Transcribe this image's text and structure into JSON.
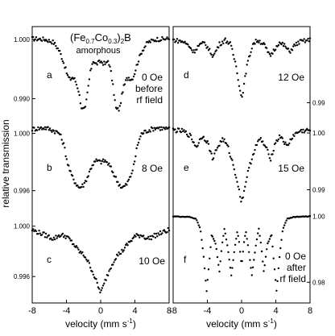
{
  "figure": {
    "ylabel": "relative transmission",
    "compound": {
      "base": "(Fe",
      "s1": "0.7",
      "mid": "Co",
      "s2": "0.3",
      "close": ")",
      "s3": "2",
      "end": "B"
    },
    "phase": "amorphous"
  },
  "chart_data": [
    {
      "type": "scatter",
      "id": "a",
      "label": "a",
      "annotation": [
        "0 Oe",
        "before",
        "rf field"
      ],
      "xlim": [
        -8,
        8
      ],
      "ylim": [
        0.9868,
        1.0012
      ],
      "yticks": [
        {
          "v": 1.0,
          "t": "1.000"
        },
        {
          "v": 0.99,
          "t": "0.990"
        }
      ],
      "xticks": [
        "-8",
        "-4",
        "0",
        "4",
        "8"
      ],
      "series": [
        {
          "x": [
            -8,
            -6.5,
            -5.5,
            -4.8,
            -4.3,
            -3.9,
            -3.6,
            -3.3,
            -3.0,
            -2.6,
            -2.2,
            -1.8,
            -1.5,
            -1.2,
            -0.9,
            -0.6,
            -0.3,
            0,
            0.3,
            0.6,
            0.9,
            1.2,
            1.5,
            1.8,
            2.2,
            2.6,
            3.0,
            3.3,
            3.6,
            3.9,
            4.3,
            4.8,
            5.5,
            6.5,
            8
          ],
          "y": [
            1.0001,
            1.0,
            0.9995,
            0.998,
            0.996,
            0.994,
            0.9932,
            0.9936,
            0.9932,
            0.9915,
            0.9882,
            0.9882,
            0.9915,
            0.9945,
            0.9965,
            0.9958,
            0.996,
            0.9963,
            0.996,
            0.9958,
            0.9965,
            0.9945,
            0.9915,
            0.9882,
            0.9882,
            0.9915,
            0.9932,
            0.9936,
            0.9932,
            0.994,
            0.996,
            0.998,
            0.9995,
            1.0,
            1.0001
          ]
        }
      ]
    },
    {
      "type": "scatter",
      "id": "b",
      "label": "b",
      "annotation": [
        "8 Oe"
      ],
      "xlim": [
        -8,
        8
      ],
      "ylim": [
        0.9948,
        1.0011
      ],
      "yticks": [
        {
          "v": 1.0,
          "t": "1.000"
        },
        {
          "v": 0.996,
          "t": "0.996"
        }
      ],
      "xticks": [
        "-8",
        "-4",
        "0",
        "4",
        "8"
      ],
      "series": [
        {
          "x": [
            -8,
            -6.5,
            -5.5,
            -4.8,
            -4.3,
            -3.9,
            -3.5,
            -3.0,
            -2.5,
            -2.0,
            -1.5,
            -1.0,
            -0.5,
            0,
            0.5,
            1.0,
            1.5,
            2.0,
            2.5,
            3.0,
            3.5,
            3.9,
            4.3,
            4.8,
            5.5,
            6.5,
            8
          ],
          "y": [
            1.0003,
            1.0004,
            1.0002,
            1.0,
            0.9992,
            0.998,
            0.9972,
            0.9966,
            0.9962,
            0.9964,
            0.997,
            0.9978,
            0.9981,
            0.998,
            0.9981,
            0.9978,
            0.9972,
            0.9966,
            0.9962,
            0.9964,
            0.997,
            0.9978,
            0.9992,
            1.0,
            1.0002,
            1.0004,
            1.0003
          ]
        }
      ]
    },
    {
      "type": "scatter",
      "id": "c",
      "label": "c",
      "annotation": [
        "10 Oe"
      ],
      "xlim": [
        -8,
        8
      ],
      "ylim": [
        0.9939,
        1.0012
      ],
      "yticks": [
        {
          "v": 1.0,
          "t": "1.000"
        },
        {
          "v": 0.996,
          "t": "0.996"
        }
      ],
      "xticks": [
        "-8",
        "-4",
        "0",
        "4",
        "8"
      ],
      "series": [
        {
          "x": [
            -8,
            -6.5,
            -5.5,
            -4.8,
            -4,
            -3.2,
            -2.5,
            -1.8,
            -1.2,
            -0.6,
            -0.2,
            0,
            0.2,
            0.6,
            1.2,
            1.8,
            2.5,
            3.2,
            4,
            4.8,
            5.5,
            6.5,
            8
          ],
          "y": [
            0.9997,
            0.9993,
            0.999,
            0.9993,
            0.9992,
            0.9986,
            0.998,
            0.9976,
            0.9968,
            0.9958,
            0.995,
            0.9948,
            0.995,
            0.9958,
            0.9968,
            0.9976,
            0.998,
            0.9986,
            0.9992,
            0.9993,
            0.999,
            0.9993,
            0.9997
          ]
        }
      ]
    },
    {
      "type": "scatter",
      "id": "d",
      "label": "d",
      "annotation": [
        "12 Oe"
      ],
      "xlim": [
        -8,
        8
      ],
      "ylim": [
        0.9875,
        1.0018
      ],
      "yticks": [
        {
          "v": 0.99,
          "t": "0.99"
        }
      ],
      "xticks": [
        "-8",
        "-4",
        "0",
        "4",
        "8"
      ],
      "series": [
        {
          "x": [
            -8,
            -6.8,
            -6.2,
            -5.6,
            -5.0,
            -4.3,
            -3.8,
            -3.3,
            -2.6,
            -1.9,
            -1.3,
            -0.6,
            -0.2,
            0,
            0.2,
            0.6,
            1.3,
            1.9,
            2.6,
            3.3,
            3.8,
            4.3,
            5.0,
            5.6,
            6.2,
            6.8,
            8
          ],
          "y": [
            1.0005,
            1.0002,
            0.9996,
            0.9985,
            0.9996,
            1.0,
            0.9988,
            0.9978,
            0.9998,
            1.0005,
            0.9998,
            0.996,
            0.9922,
            0.9908,
            0.9922,
            0.996,
            0.9998,
            1.0005,
            0.9998,
            0.9978,
            0.9988,
            1.0,
            0.9996,
            0.9985,
            0.9996,
            1.0002,
            1.0005
          ]
        }
      ]
    },
    {
      "type": "scatter",
      "id": "e",
      "label": "e",
      "annotation": [
        "15 Oe"
      ],
      "xlim": [
        -8,
        8
      ],
      "ylim": [
        0.9868,
        1.0027
      ],
      "yticks": [
        {
          "v": 1.0,
          "t": "1.00"
        },
        {
          "v": 0.99,
          "t": "0.99"
        }
      ],
      "xticks": [
        "-8",
        "-4",
        "0",
        "4",
        "8"
      ],
      "series": [
        {
          "x": [
            -8,
            -6.8,
            -6.0,
            -5.3,
            -4.6,
            -4.0,
            -3.4,
            -2.8,
            -2.2,
            -1.6,
            -1.0,
            -0.5,
            -0.2,
            0,
            0.2,
            0.5,
            1.0,
            1.6,
            2.2,
            2.8,
            3.4,
            4.0,
            4.6,
            5.3,
            6.0,
            6.8,
            8
          ],
          "y": [
            1.0005,
            1.0003,
            0.9995,
            0.9975,
            0.9995,
            0.9985,
            0.9955,
            0.9975,
            0.999,
            0.9975,
            0.9945,
            0.9915,
            0.989,
            0.988,
            0.989,
            0.9915,
            0.9945,
            0.9975,
            0.999,
            0.9975,
            0.9955,
            0.9985,
            0.9995,
            0.9975,
            0.9995,
            1.0003,
            1.0005
          ]
        }
      ]
    },
    {
      "type": "scatter",
      "id": "f",
      "label": "f",
      "annotation": [
        "0 Oe",
        "after",
        "rf field"
      ],
      "xlim": [
        -8,
        8
      ],
      "ylim": [
        0.9737,
        1.0016
      ],
      "yticks": [
        {
          "v": 1.0,
          "t": "1.00"
        },
        {
          "v": 0.98,
          "t": "0.98"
        }
      ],
      "xticks": [
        "-8",
        "-4",
        "0",
        "4",
        "8"
      ],
      "series": [
        {
          "x": [
            -8,
            -6,
            -5.3,
            -4.8,
            -4.4,
            -4.1,
            -3.8,
            -3.5,
            -3.0,
            -2.6,
            -2.3,
            -2.0,
            -1.6,
            -1.2,
            -0.8,
            -0.5,
            -0.3,
            0,
            0.3,
            0.5,
            0.8,
            1.2,
            1.6,
            2.0,
            2.3,
            2.6,
            3.0,
            3.5,
            3.8,
            4.1,
            4.4,
            4.8,
            5.3,
            6,
            8
          ],
          "y": [
            1.0,
            0.9998,
            0.9992,
            0.996,
            0.987,
            0.977,
            0.9855,
            0.9945,
            0.9915,
            0.983,
            0.991,
            0.9965,
            0.99,
            0.982,
            0.9905,
            0.9955,
            0.9925,
            0.985,
            0.9925,
            0.9955,
            0.9905,
            0.982,
            0.99,
            0.9965,
            0.991,
            0.983,
            0.9915,
            0.9945,
            0.9855,
            0.977,
            0.987,
            0.996,
            0.9992,
            0.9998,
            1.0
          ]
        }
      ]
    }
  ],
  "axes": {
    "xlabel": "velocity (mm s",
    "xlabel_sup": "-1",
    "xlabel_end": ")"
  }
}
